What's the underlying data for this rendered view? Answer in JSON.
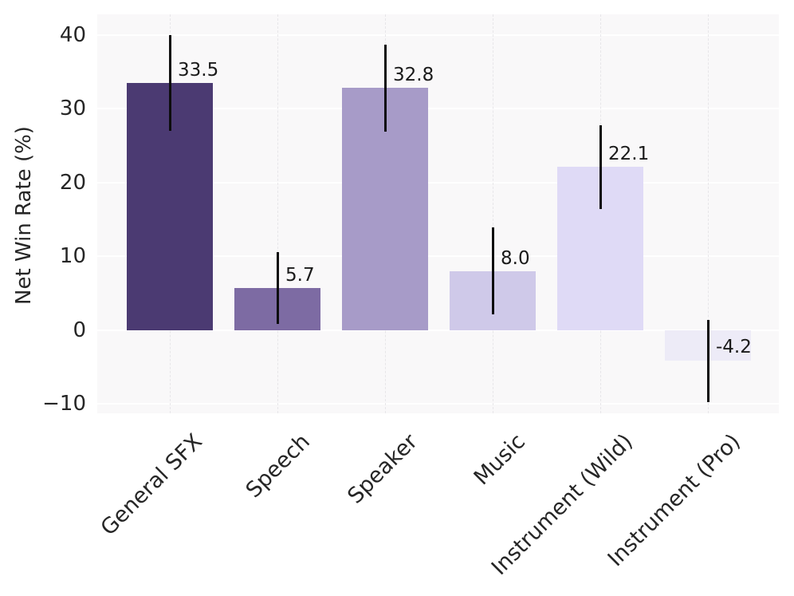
{
  "chart_data": {
    "type": "bar",
    "title": "",
    "xlabel": "",
    "ylabel": "Net Win Rate (%)",
    "categories": [
      "General SFX",
      "Speech",
      "Speaker",
      "Music",
      "Instrument (Wild)",
      "Instrument (Pro)"
    ],
    "values": [
      33.5,
      5.7,
      32.8,
      8.0,
      22.1,
      -4.2
    ],
    "value_labels": [
      "33.5",
      "5.7",
      "32.8",
      "8.0",
      "22.1",
      "-4.2"
    ],
    "error_margins": [
      6.5,
      4.9,
      5.9,
      5.9,
      5.7,
      5.6
    ],
    "bar_colors": [
      "#4b3a72",
      "#7d6ba3",
      "#a79bc8",
      "#cfc9e9",
      "#dfdaf6",
      "#edebf7"
    ],
    "yticks": [
      40,
      30,
      20,
      10,
      0,
      -10
    ],
    "ytick_labels": [
      "40",
      "30",
      "20",
      "10",
      "0",
      "−10"
    ],
    "ylim": [
      -11.3,
      42.8
    ],
    "grid": true,
    "legend_position": "none",
    "plot_background": "#f9f8f9",
    "horizontal_grid_color": "#ffffff",
    "vertical_grid_color": "#e7e6e9",
    "text_color": "#262626",
    "value_label_color": "#1a1a1a",
    "error_bar_color": "#0d0d0d"
  }
}
